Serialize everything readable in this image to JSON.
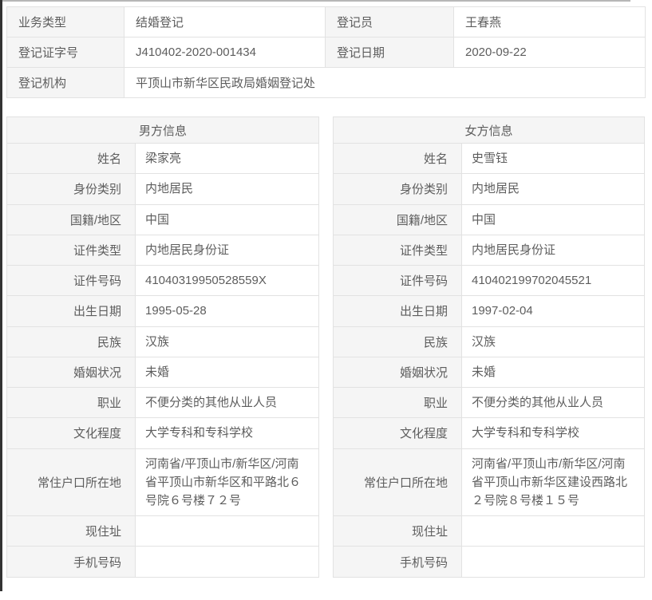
{
  "colors": {
    "label_background": "#f5f5f5",
    "border": "#e2e2e2",
    "text": "#5d5d5d",
    "left_edge_line": "#333333",
    "top_edge_line": "#b7b7b7"
  },
  "summary_table": {
    "rows": [
      {
        "label_1": "业务类型",
        "value_1": "结婚登记",
        "label_2": "登记员",
        "value_2": "王春燕"
      },
      {
        "label_1": "登记证字号",
        "value_1": "J410402-2020-001434",
        "label_2": "登记日期",
        "value_2": "2020-09-22"
      },
      {
        "label_1": "登记机构",
        "value_1": "平顶山市新华区民政局婚姻登记处"
      }
    ]
  },
  "panels": [
    {
      "title": "男方信息",
      "fields": [
        {
          "key": "name",
          "label": "姓名",
          "value": "梁家亮"
        },
        {
          "key": "identity-type",
          "label": "身份类别",
          "value": "内地居民"
        },
        {
          "key": "nationality",
          "label": "国籍/地区",
          "value": "中国"
        },
        {
          "key": "id-type",
          "label": "证件类型",
          "value": "内地居民身份证"
        },
        {
          "key": "id-number",
          "label": "证件号码",
          "value": "41040319950528559X"
        },
        {
          "key": "birth-date",
          "label": "出生日期",
          "value": "1995-05-28"
        },
        {
          "key": "ethnicity",
          "label": "民族",
          "value": "汉族"
        },
        {
          "key": "marital-status",
          "label": "婚姻状况",
          "value": "未婚"
        },
        {
          "key": "occupation",
          "label": "职业",
          "value": "不便分类的其他从业人员"
        },
        {
          "key": "education",
          "label": "文化程度",
          "value": "大学专科和专科学校"
        },
        {
          "key": "household-address",
          "label": "常住户口所在地",
          "value": "河南省/平顶山市/新华区/河南省平顶山市新华区和平路北６号院６号楼７２号"
        },
        {
          "key": "current-address",
          "label": "现住址",
          "value": ""
        },
        {
          "key": "mobile-number",
          "label": "手机号码",
          "value": ""
        }
      ]
    },
    {
      "title": "女方信息",
      "fields": [
        {
          "key": "name",
          "label": "姓名",
          "value": "史雪钰"
        },
        {
          "key": "identity-type",
          "label": "身份类别",
          "value": "内地居民"
        },
        {
          "key": "nationality",
          "label": "国籍/地区",
          "value": "中国"
        },
        {
          "key": "id-type",
          "label": "证件类型",
          "value": "内地居民身份证"
        },
        {
          "key": "id-number",
          "label": "证件号码",
          "value": "410402199702045521"
        },
        {
          "key": "birth-date",
          "label": "出生日期",
          "value": "1997-02-04"
        },
        {
          "key": "ethnicity",
          "label": "民族",
          "value": "汉族"
        },
        {
          "key": "marital-status",
          "label": "婚姻状况",
          "value": "未婚"
        },
        {
          "key": "occupation",
          "label": "职业",
          "value": "不便分类的其他从业人员"
        },
        {
          "key": "education",
          "label": "文化程度",
          "value": "大学专科和专科学校"
        },
        {
          "key": "household-address",
          "label": "常住户口所在地",
          "value": "河南省/平顶山市/新华区/河南省平顶山市新华区建设西路北２号院８号楼１５号"
        },
        {
          "key": "current-address",
          "label": "现住址",
          "value": ""
        },
        {
          "key": "mobile-number",
          "label": "手机号码",
          "value": ""
        }
      ]
    }
  ]
}
